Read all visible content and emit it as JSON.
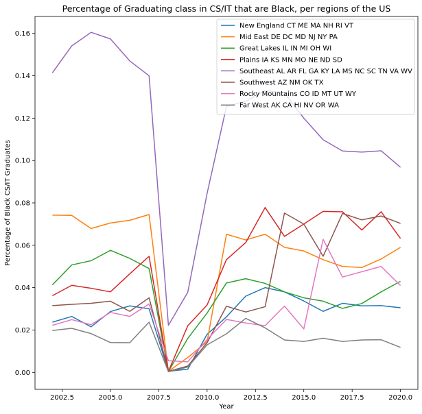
{
  "chart_data": {
    "type": "line",
    "title": "Percentage of Graduating class in CS/IT that are Black, per regions of the US",
    "xlabel": "Year",
    "ylabel": "Percentage of Black CS/IT Graduates",
    "xlim": [
      2001.1,
      2020.9
    ],
    "ylim": [
      -0.008,
      0.168
    ],
    "x_ticks": [
      2002.5,
      2005.0,
      2007.5,
      2010.0,
      2012.5,
      2015.0,
      2017.5,
      2020.0
    ],
    "x_tick_labels": [
      "2002.5",
      "2005.0",
      "2007.5",
      "2010.0",
      "2012.5",
      "2015.0",
      "2017.5",
      "2020.0"
    ],
    "y_ticks": [
      0.0,
      0.02,
      0.04,
      0.06,
      0.08,
      0.1,
      0.12,
      0.14,
      0.16
    ],
    "y_tick_labels": [
      "0.00",
      "0.02",
      "0.04",
      "0.06",
      "0.08",
      "0.10",
      "0.12",
      "0.14",
      "0.16"
    ],
    "grid": false,
    "legend_position": "top-right",
    "x": [
      2002,
      2003,
      2004,
      2005,
      2006,
      2007,
      2008,
      2009,
      2010,
      2011,
      2012,
      2013,
      2014,
      2015,
      2016,
      2017,
      2018,
      2019,
      2020
    ],
    "series": [
      {
        "name": "New England CT ME MA NH RI VT",
        "color": "#1f77b4",
        "values": [
          0.0237,
          0.0264,
          0.0215,
          0.0287,
          0.0314,
          0.03,
          0.0005,
          0.0015,
          0.018,
          0.0262,
          0.036,
          0.04,
          0.038,
          0.0337,
          0.0288,
          0.0326,
          0.0314,
          0.0315,
          0.0305
        ]
      },
      {
        "name": "Mid East DE DC MD NJ NY PA",
        "color": "#ff7f0e",
        "values": [
          0.0742,
          0.0741,
          0.0679,
          0.0705,
          0.0718,
          0.0745,
          0.0005,
          0.007,
          0.0145,
          0.0652,
          0.0625,
          0.0652,
          0.059,
          0.0573,
          0.0532,
          0.05,
          0.0495,
          0.0535,
          0.059
        ]
      },
      {
        "name": "Great Lakes IL IN MI OH WI",
        "color": "#2ca02c",
        "values": [
          0.0413,
          0.0507,
          0.0527,
          0.0576,
          0.0538,
          0.049,
          0.0005,
          0.016,
          0.028,
          0.0422,
          0.0442,
          0.042,
          0.038,
          0.0352,
          0.0336,
          0.0302,
          0.0325,
          0.038,
          0.043
        ]
      },
      {
        "name": "Plains IA KS MN MO NE ND SD",
        "color": "#d62728",
        "values": [
          0.0362,
          0.0411,
          0.0397,
          0.038,
          0.0465,
          0.0548,
          0.0005,
          0.022,
          0.0318,
          0.0532,
          0.0613,
          0.0778,
          0.0642,
          0.07,
          0.076,
          0.0758,
          0.0672,
          0.0758,
          0.0632
        ]
      },
      {
        "name": "Southeast AL AR FL GA KY LA MS NC SC TN VA WV",
        "color": "#9467bd",
        "values": [
          0.1414,
          0.1541,
          0.1605,
          0.1574,
          0.147,
          0.14,
          0.0222,
          0.0378,
          0.0845,
          0.1255,
          0.128,
          0.133,
          0.132,
          0.12,
          0.1098,
          0.1045,
          0.104,
          0.1046,
          0.0968
        ]
      },
      {
        "name": "Southwest AZ NM OK TX",
        "color": "#8c564b",
        "values": [
          0.0315,
          0.0321,
          0.0326,
          0.0336,
          0.0288,
          0.0352,
          0.0005,
          0.003,
          0.014,
          0.0312,
          0.0285,
          0.031,
          0.0752,
          0.07,
          0.0548,
          0.075,
          0.072,
          0.0738,
          0.0703
        ]
      },
      {
        "name": "Rocky Mountains CO ID MT UT WY",
        "color": "#e377c2",
        "values": [
          0.0222,
          0.0249,
          0.0225,
          0.0283,
          0.0264,
          0.0323,
          0.0055,
          0.005,
          0.0155,
          0.025,
          0.0233,
          0.022,
          0.0313,
          0.0205,
          0.0628,
          0.045,
          0.0475,
          0.05,
          0.041
        ]
      },
      {
        "name": "Far West AK CA HI NV OR WA",
        "color": "#7f7f7f",
        "values": [
          0.0198,
          0.0208,
          0.0183,
          0.0141,
          0.014,
          0.0237,
          0.0003,
          0.0025,
          0.013,
          0.0182,
          0.0255,
          0.021,
          0.0153,
          0.0146,
          0.0161,
          0.0146,
          0.0153,
          0.0154,
          0.0118
        ]
      }
    ]
  }
}
